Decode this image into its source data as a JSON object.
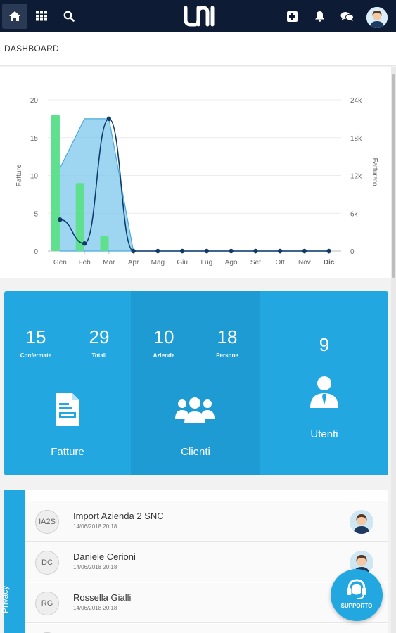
{
  "topbar": {
    "icons": [
      "home-icon",
      "apps-grid-icon",
      "search-icon",
      "uni-logo",
      "add-icon",
      "bell-icon",
      "chat-icon",
      "user-avatar"
    ]
  },
  "breadcrumb": {
    "title": "DASHBOARD"
  },
  "chart_data": {
    "type": "bar",
    "categories": [
      "Gen",
      "Feb",
      "Mar",
      "Apr",
      "Mag",
      "Giu",
      "Lug",
      "Ago",
      "Set",
      "Ott",
      "Nov",
      "Dic"
    ],
    "left_axis": {
      "label": "Fatture",
      "ticks": [
        "0",
        "5",
        "10",
        "15",
        "20"
      ],
      "range": [
        0,
        20
      ]
    },
    "right_axis": {
      "label": "Fatturato",
      "ticks": [
        "0",
        "6k",
        "12k",
        "18k",
        "24k"
      ],
      "range": [
        0,
        24000
      ]
    },
    "series": [
      {
        "type": "bar",
        "axis": "left",
        "values": [
          18,
          9,
          2,
          0,
          0,
          0,
          0,
          0,
          0,
          0,
          0,
          0
        ],
        "color": "#5fe08e"
      },
      {
        "type": "area",
        "axis": "left",
        "values": [
          11,
          17.5,
          17.5,
          0,
          0,
          0,
          0,
          0,
          0,
          0,
          0,
          0
        ],
        "color": "#7ec8ee"
      },
      {
        "type": "line",
        "axis": "right",
        "values": [
          5000,
          1200,
          21000,
          0,
          0,
          0,
          0,
          0,
          0,
          0,
          0,
          0
        ],
        "color": "#0f3b6a"
      }
    ],
    "highlight_category": "Dic"
  },
  "stats": {
    "fatture": {
      "confermate_value": "15",
      "confermate_label": "Confermate",
      "totali_value": "29",
      "totali_label": "Totali",
      "title": "Fatture"
    },
    "clienti": {
      "aziende_value": "10",
      "aziende_label": "Aziende",
      "persone_value": "18",
      "persone_label": "Persone",
      "title": "Clienti"
    },
    "utenti": {
      "value": "9",
      "title": "Utenti"
    }
  },
  "list": {
    "tab_label": "Privacy",
    "rows": [
      {
        "initials": "IA2S",
        "name": "Import Azienda 2 SNC",
        "date": "14/06/2018 20:18"
      },
      {
        "initials": "DC",
        "name": "Daniele Cerioni",
        "date": "14/06/2018 20:18"
      },
      {
        "initials": "RG",
        "name": "Rossella Gialli",
        "date": "14/06/2018 20:18"
      }
    ]
  },
  "support": {
    "label": "SUPPORTO"
  },
  "colors": {
    "topbar": "#0d1b34",
    "accent": "#22a7e0"
  }
}
